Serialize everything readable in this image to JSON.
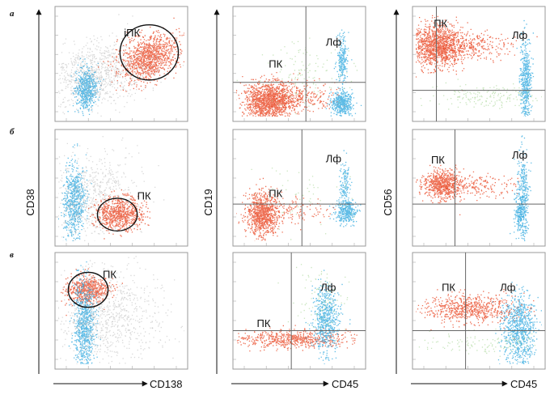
{
  "figure": {
    "row_labels": [
      "а",
      "б",
      "в"
    ],
    "columns": [
      {
        "x_axis": "CD138",
        "y_axis": "CD38"
      },
      {
        "x_axis": "CD45",
        "y_axis": "CD19"
      },
      {
        "x_axis": "CD45",
        "y_axis": "CD56"
      }
    ],
    "colors": {
      "plasma": "#e8401c",
      "lymph": "#2aa6dd",
      "other": "#b9b9b9",
      "green": "#9bcf86"
    }
  },
  "chart_data": {
    "type": "scatter",
    "panels": [
      {
        "row": "а",
        "x": "CD138",
        "y": "CD38",
        "gate": "ellipse",
        "labels": [
          "iПК"
        ]
      },
      {
        "row": "а",
        "x": "CD45",
        "y": "CD19",
        "gate": "quadrant",
        "labels": [
          "ПК",
          "Лф"
        ]
      },
      {
        "row": "а",
        "x": "CD45",
        "y": "CD56",
        "gate": "quadrant",
        "labels": [
          "ПК",
          "Лф"
        ]
      },
      {
        "row": "б",
        "x": "CD138",
        "y": "CD38",
        "gate": "ellipse",
        "labels": [
          "ПК"
        ]
      },
      {
        "row": "б",
        "x": "CD45",
        "y": "CD19",
        "gate": "quadrant",
        "labels": [
          "ПК",
          "Лф"
        ]
      },
      {
        "row": "б",
        "x": "CD45",
        "y": "CD56",
        "gate": "quadrant",
        "labels": [
          "ПК",
          "Лф"
        ]
      },
      {
        "row": "в",
        "x": "CD138",
        "y": "CD38",
        "gate": "ellipse",
        "labels": [
          "ПК"
        ]
      },
      {
        "row": "в",
        "x": "CD45",
        "y": "CD19",
        "gate": "quadrant",
        "labels": [
          "ПК",
          "Лф"
        ]
      },
      {
        "row": "в",
        "x": "CD45",
        "y": "CD56",
        "gate": "quadrant",
        "labels": [
          "ПК",
          "Лф"
        ]
      }
    ]
  }
}
